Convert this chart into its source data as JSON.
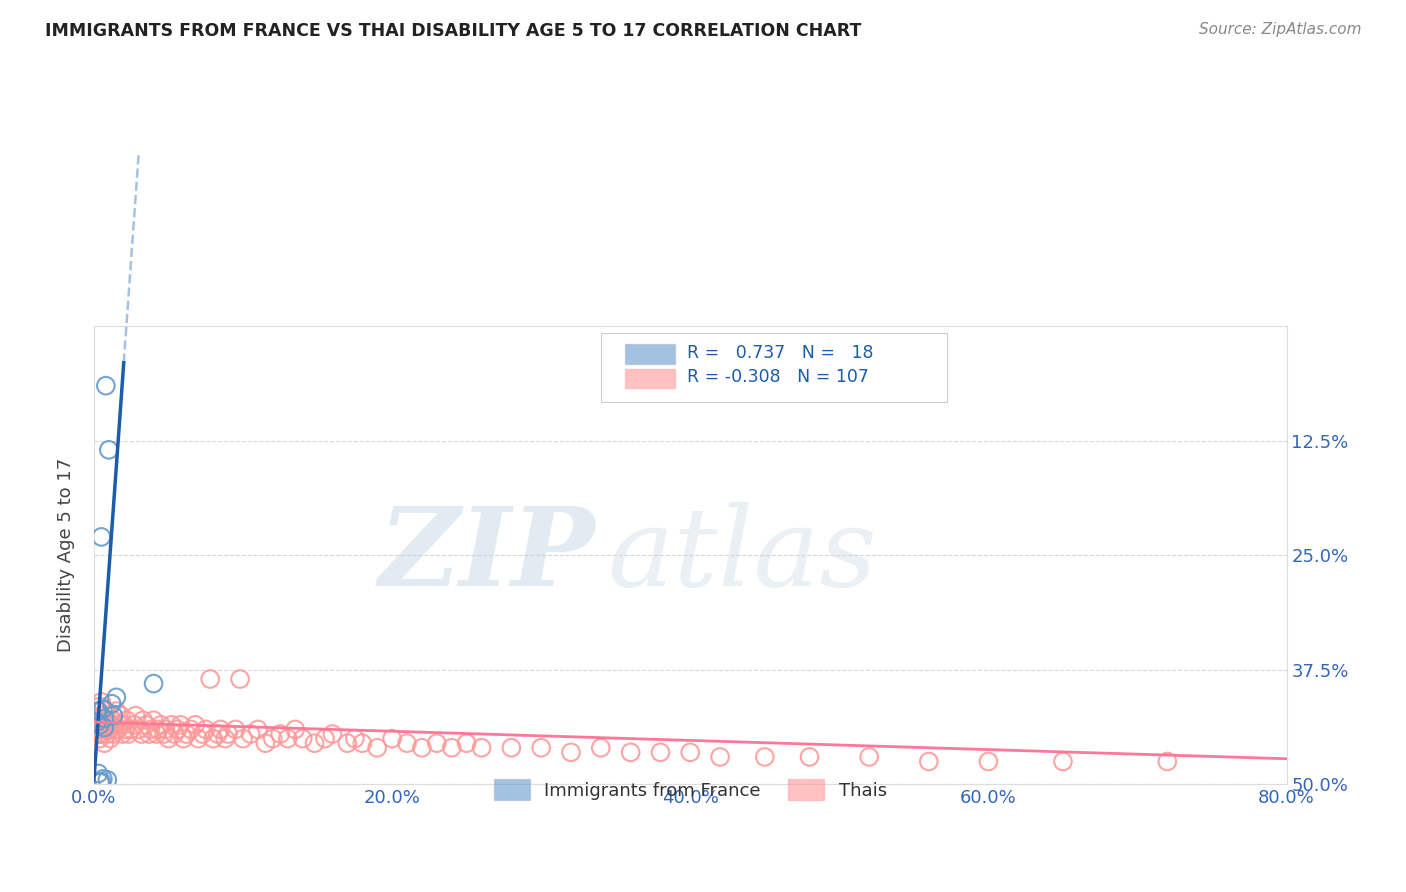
{
  "title": "IMMIGRANTS FROM FRANCE VS THAI DISABILITY AGE 5 TO 17 CORRELATION CHART",
  "source": "Source: ZipAtlas.com",
  "ylabel": "Disability Age 5 to 17",
  "xlim": [
    0.0,
    0.8
  ],
  "ylim": [
    0.0,
    0.5
  ],
  "xticks": [
    0.0,
    0.2,
    0.4,
    0.6,
    0.8
  ],
  "yticks": [
    0.0,
    0.125,
    0.25,
    0.375,
    0.5
  ],
  "xticklabels": [
    "0.0%",
    "20.0%",
    "40.0%",
    "60.0%",
    "80.0%"
  ],
  "yticklabels_right": [
    "50.0%",
    "37.5%",
    "25.0%",
    "12.5%",
    ""
  ],
  "legend_labels": [
    "Immigrants from France",
    "Thais"
  ],
  "blue_R": 0.737,
  "blue_N": 18,
  "pink_R": -0.308,
  "pink_N": 107,
  "blue_color": "#6699CC",
  "pink_color": "#FF9999",
  "blue_line_color": "#1A5DAB",
  "pink_line_color": "#FF7799",
  "watermark_zip": "ZIP",
  "watermark_atlas": "atlas",
  "background_color": "#FFFFFF",
  "blue_scatter_x": [
    0.008,
    0.01,
    0.005,
    0.012,
    0.015,
    0.013,
    0.006,
    0.003,
    0.04,
    0.007,
    0.004,
    0.002,
    0.007,
    0.003,
    0.009,
    0.005,
    0.006,
    0.004
  ],
  "blue_scatter_y": [
    0.435,
    0.365,
    0.27,
    0.088,
    0.095,
    0.075,
    0.082,
    0.08,
    0.11,
    0.072,
    0.065,
    0.068,
    0.062,
    0.012,
    0.005,
    0.003,
    0.006,
    0.002
  ],
  "pink_scatter_x": [
    0.001,
    0.002,
    0.003,
    0.003,
    0.004,
    0.004,
    0.004,
    0.005,
    0.005,
    0.005,
    0.006,
    0.006,
    0.007,
    0.007,
    0.008,
    0.008,
    0.009,
    0.009,
    0.01,
    0.01,
    0.011,
    0.012,
    0.013,
    0.013,
    0.014,
    0.015,
    0.016,
    0.017,
    0.018,
    0.019,
    0.02,
    0.021,
    0.022,
    0.023,
    0.025,
    0.027,
    0.028,
    0.03,
    0.032,
    0.033,
    0.035,
    0.037,
    0.038,
    0.04,
    0.042,
    0.043,
    0.045,
    0.047,
    0.048,
    0.05,
    0.052,
    0.054,
    0.056,
    0.058,
    0.06,
    0.062,
    0.065,
    0.068,
    0.07,
    0.073,
    0.075,
    0.078,
    0.08,
    0.083,
    0.085,
    0.088,
    0.09,
    0.095,
    0.098,
    0.1,
    0.105,
    0.11,
    0.115,
    0.12,
    0.125,
    0.13,
    0.135,
    0.14,
    0.148,
    0.155,
    0.16,
    0.17,
    0.175,
    0.18,
    0.19,
    0.2,
    0.21,
    0.22,
    0.23,
    0.24,
    0.25,
    0.26,
    0.28,
    0.3,
    0.32,
    0.34,
    0.36,
    0.38,
    0.4,
    0.42,
    0.45,
    0.48,
    0.52,
    0.56,
    0.6,
    0.65,
    0.72
  ],
  "pink_scatter_y": [
    0.06,
    0.07,
    0.055,
    0.08,
    0.05,
    0.065,
    0.085,
    0.075,
    0.055,
    0.09,
    0.055,
    0.07,
    0.06,
    0.045,
    0.065,
    0.08,
    0.055,
    0.07,
    0.06,
    0.075,
    0.05,
    0.065,
    0.055,
    0.07,
    0.06,
    0.08,
    0.06,
    0.065,
    0.075,
    0.055,
    0.065,
    0.06,
    0.07,
    0.055,
    0.06,
    0.065,
    0.075,
    0.06,
    0.055,
    0.07,
    0.065,
    0.055,
    0.06,
    0.07,
    0.055,
    0.06,
    0.065,
    0.055,
    0.06,
    0.05,
    0.065,
    0.055,
    0.06,
    0.065,
    0.05,
    0.055,
    0.06,
    0.065,
    0.05,
    0.055,
    0.06,
    0.115,
    0.05,
    0.055,
    0.06,
    0.05,
    0.055,
    0.06,
    0.115,
    0.05,
    0.055,
    0.06,
    0.045,
    0.05,
    0.055,
    0.05,
    0.06,
    0.05,
    0.045,
    0.05,
    0.055,
    0.045,
    0.05,
    0.045,
    0.04,
    0.05,
    0.045,
    0.04,
    0.045,
    0.04,
    0.045,
    0.04,
    0.04,
    0.04,
    0.035,
    0.04,
    0.035,
    0.035,
    0.035,
    0.03,
    0.03,
    0.03,
    0.03,
    0.025,
    0.025,
    0.025,
    0.025
  ],
  "blue_trend_x0": 0.0,
  "blue_trend_y0": 0.005,
  "blue_trend_x1": 0.02,
  "blue_trend_y1": 0.46,
  "pink_trend_x0": 0.0,
  "pink_trend_y0": 0.068,
  "pink_trend_x1": 0.8,
  "pink_trend_y1": 0.028
}
